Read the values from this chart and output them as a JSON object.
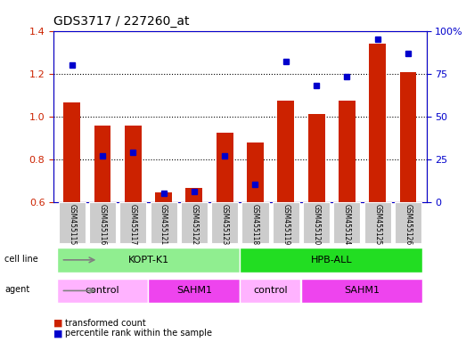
{
  "title": "GDS3717 / 227260_at",
  "samples": [
    "GSM455115",
    "GSM455116",
    "GSM455117",
    "GSM455121",
    "GSM455122",
    "GSM455123",
    "GSM455118",
    "GSM455119",
    "GSM455120",
    "GSM455124",
    "GSM455125",
    "GSM455126"
  ],
  "red_values": [
    1.065,
    0.955,
    0.955,
    0.645,
    0.665,
    0.925,
    0.878,
    1.072,
    1.01,
    1.072,
    1.34,
    1.205
  ],
  "blue_values": [
    80,
    27,
    29,
    5,
    6,
    27,
    10,
    82,
    68,
    73,
    95,
    87
  ],
  "red_base": 0.6,
  "ylim_left": [
    0.6,
    1.4
  ],
  "ylim_right": [
    0,
    100
  ],
  "yticks_left": [
    0.6,
    0.8,
    1.0,
    1.2,
    1.4
  ],
  "yticks_right": [
    0,
    25,
    50,
    75,
    100
  ],
  "cell_line_groups": [
    {
      "label": "KOPT-K1",
      "start": 0,
      "end": 6,
      "color": "#90EE90"
    },
    {
      "label": "HPB-ALL",
      "start": 6,
      "end": 12,
      "color": "#22DD22"
    }
  ],
  "agent_groups": [
    {
      "label": "control",
      "start": 0,
      "end": 3,
      "color": "#FFB3FF"
    },
    {
      "label": "SAHM1",
      "start": 3,
      "end": 6,
      "color": "#EE44EE"
    },
    {
      "label": "control",
      "start": 6,
      "end": 8,
      "color": "#FFB3FF"
    },
    {
      "label": "SAHM1",
      "start": 8,
      "end": 12,
      "color": "#EE44EE"
    }
  ],
  "bar_color": "#CC2200",
  "dot_color": "#0000CC",
  "tick_bg_color": "#CCCCCC",
  "left_tick_color": "#CC2200",
  "right_tick_color": "#0000CC"
}
